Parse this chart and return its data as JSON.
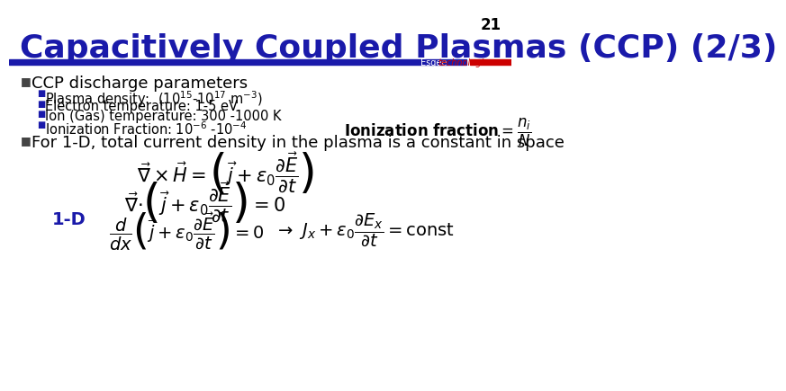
{
  "slide_number": "21",
  "title": "Capacitively Coupled Plasmas (CCP) (2/3)",
  "title_color": "#1a1aaa",
  "title_fontsize": 26,
  "bg_color": "#ffffff",
  "bar_color": "#1a1aaa",
  "bar_color2": "#cc0000",
  "slide_num_color": "#000000",
  "bullet1": "CCP discharge parameters",
  "sub_bullet1": "Plasma density:  (10",
  "sub_bullet1b": "-10",
  "sub_bullet1c": " m",
  "sub_bullet2": "Electron temperature: 1-5 eV",
  "sub_bullet3": "Ion (Gas) temperature: 300 -1000 K",
  "sub_bullet4": "Ionization Fraction: 10",
  "sub_bullet4b": " -10",
  "bullet2": "For 1-D, total current density in the plasma is a constant in space",
  "label_1d": "1-D",
  "esgee_text1": "Esgee ",
  "esgee_text2": "technologies",
  "text_color": "#000000",
  "sub_bullet_color": "#1a1aaa",
  "bullet_color": "#444444"
}
